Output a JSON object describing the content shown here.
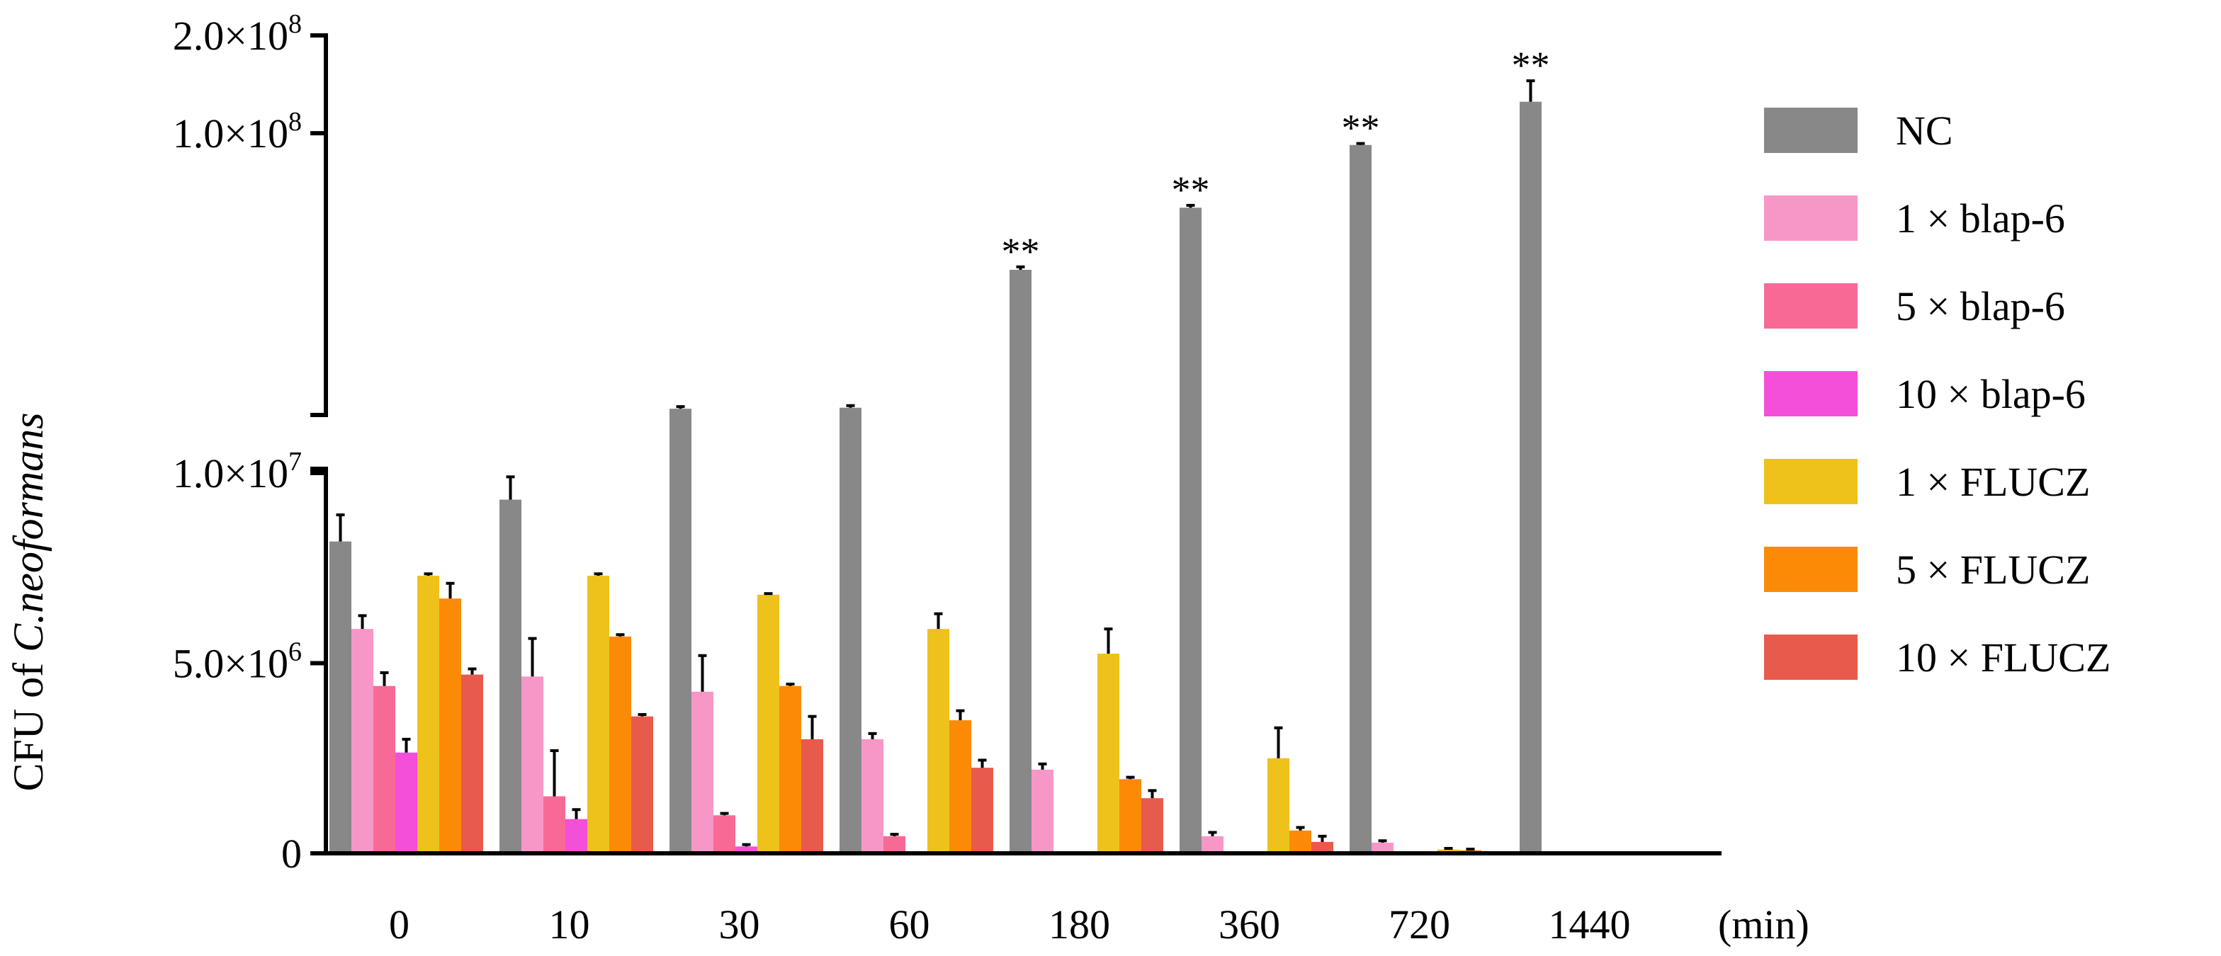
{
  "chart_data": {
    "type": "bar",
    "ylabel_prefix": "CFU of ",
    "ylabel_species": "C.neoformans",
    "x_unit_label": "(min)",
    "categories": [
      "0",
      "10",
      "30",
      "60",
      "180",
      "360",
      "720",
      "1440"
    ],
    "y_ticks_lower": [
      {
        "value": 0,
        "label": "0"
      },
      {
        "value": 5000000,
        "mantissa": "5.0×10",
        "exp": "6"
      },
      {
        "value": 10000000,
        "mantissa": "1.0×10",
        "exp": "7"
      }
    ],
    "y_ticks_upper": [
      {
        "value": 100000000,
        "mantissa": "1.0×10",
        "exp": "8"
      },
      {
        "value": 200000000,
        "mantissa": "2.0×10",
        "exp": "8"
      }
    ],
    "axis_break": {
      "lower_max": 10000000,
      "upper_min": 14000000,
      "upper_max": 200000000
    },
    "series": [
      {
        "name": "NC",
        "color": "#888888",
        "values": [
          8200000,
          9300000,
          14200000,
          14300000,
          38000000,
          59000000,
          92000000,
          125000000
        ],
        "errors": [
          700000,
          600000,
          0,
          0,
          800000,
          1000000,
          1000000,
          20000000
        ],
        "significance": [
          "",
          "",
          "",
          "",
          "**",
          "**",
          "**",
          "**"
        ]
      },
      {
        "name": "1 × blap-6",
        "color": "#f797c8",
        "values": [
          5900000,
          4650000,
          4250000,
          3000000,
          2200000,
          450000,
          280000,
          0
        ],
        "errors": [
          350000,
          1000000,
          950000,
          150000,
          150000,
          100000,
          50000,
          0
        ]
      },
      {
        "name": "5 × blap-6",
        "color": "#f76a95",
        "values": [
          4400000,
          1500000,
          1000000,
          450000,
          0,
          0,
          0,
          0
        ],
        "errors": [
          350000,
          1200000,
          50000,
          50000,
          0,
          0,
          0,
          0
        ]
      },
      {
        "name": "10 × blap-6",
        "color": "#f44fd8",
        "values": [
          2650000,
          900000,
          180000,
          0,
          0,
          0,
          0,
          0
        ],
        "errors": [
          350000,
          250000,
          50000,
          0,
          0,
          0,
          0,
          0
        ]
      },
      {
        "name": "1 × FLUCZ",
        "color": "#eec21a",
        "values": [
          7300000,
          7300000,
          6800000,
          5900000,
          5250000,
          2500000,
          100000,
          0
        ],
        "errors": [
          50000,
          50000,
          30000,
          400000,
          650000,
          800000,
          30000,
          0
        ]
      },
      {
        "name": "5 × FLUCZ",
        "color": "#fb8b07",
        "values": [
          6700000,
          5700000,
          4400000,
          3500000,
          1950000,
          600000,
          80000,
          0
        ],
        "errors": [
          400000,
          50000,
          50000,
          250000,
          50000,
          80000,
          30000,
          0
        ]
      },
      {
        "name": "10 × FLUCZ",
        "color": "#e85a4c",
        "values": [
          4700000,
          3600000,
          3000000,
          2250000,
          1450000,
          300000,
          0,
          0
        ],
        "errors": [
          150000,
          50000,
          600000,
          200000,
          200000,
          150000,
          0,
          0
        ]
      }
    ]
  }
}
